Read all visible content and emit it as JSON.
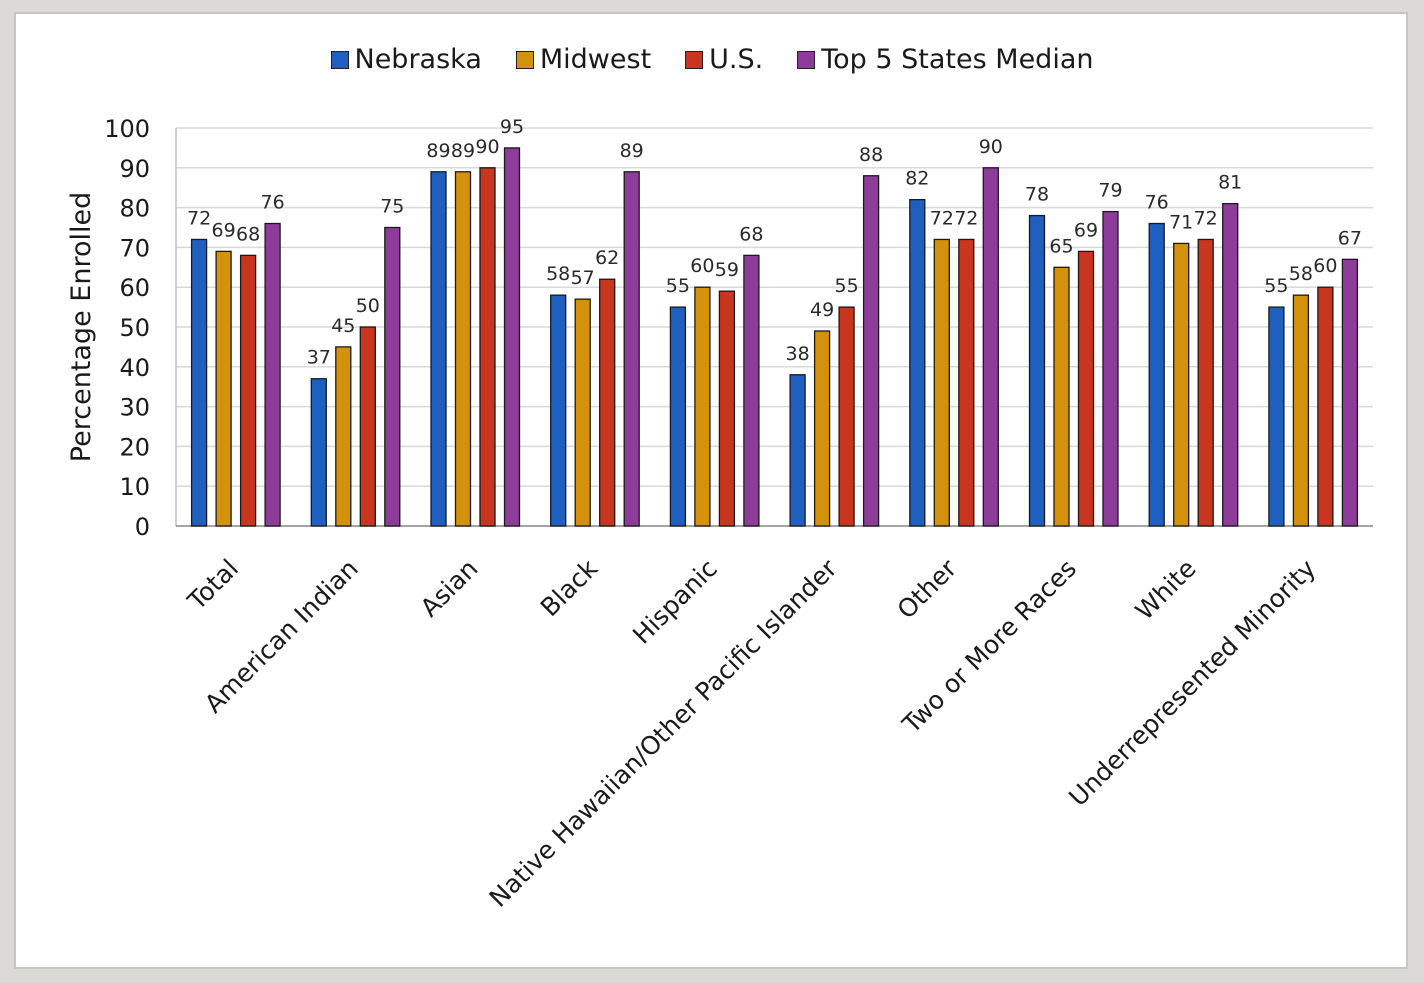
{
  "chart_data": {
    "type": "bar",
    "title": "",
    "xlabel": "",
    "ylabel": "Percentage Enrolled",
    "ylim": [
      0,
      100
    ],
    "yticks": [
      "0",
      "10",
      "20",
      "30",
      "40",
      "50",
      "60",
      "70",
      "80",
      "90",
      "100"
    ],
    "grid": true,
    "legend_position": "top",
    "categories": [
      "Total",
      "American Indian",
      "Asian",
      "Black",
      "Hispanic",
      "Native Hawaiian/Other Pacific Islander",
      "Other",
      "Two or More Races",
      "White",
      "Underrepresented Minority"
    ],
    "series": [
      {
        "name": "Nebraska",
        "color": "#1f5fbf",
        "values": [
          72,
          37,
          89,
          58,
          55,
          38,
          82,
          78,
          76,
          55
        ]
      },
      {
        "name": "Midwest",
        "color": "#d4920c",
        "values": [
          69,
          45,
          89,
          57,
          60,
          49,
          72,
          65,
          71,
          58
        ]
      },
      {
        "name": "U.S.",
        "color": "#c8361f",
        "values": [
          68,
          50,
          90,
          62,
          59,
          55,
          72,
          69,
          72,
          60
        ]
      },
      {
        "name": "Top 5 States Median",
        "color": "#8e3c9a",
        "values": [
          76,
          75,
          95,
          89,
          68,
          88,
          90,
          79,
          81,
          67
        ]
      }
    ]
  }
}
